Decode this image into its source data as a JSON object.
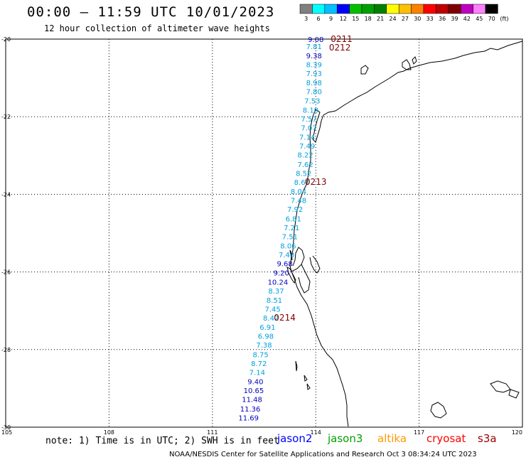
{
  "header": {
    "title": "00:00 – 11:59 UTC 10/01/2023",
    "subtitle": "12 hour collection of altimeter wave heights"
  },
  "legend": {
    "unit": "(ft)",
    "bins": [
      {
        "label": "3",
        "color": "#808080"
      },
      {
        "label": "6",
        "color": "#00ffff"
      },
      {
        "label": "9",
        "color": "#00c0ff"
      },
      {
        "label": "12",
        "color": "#0000ff"
      },
      {
        "label": "15",
        "color": "#00c000"
      },
      {
        "label": "18",
        "color": "#00a000"
      },
      {
        "label": "21",
        "color": "#008000"
      },
      {
        "label": "24",
        "color": "#ffff00"
      },
      {
        "label": "27",
        "color": "#ffc000"
      },
      {
        "label": "30",
        "color": "#ff8000"
      },
      {
        "label": "33",
        "color": "#ff0000"
      },
      {
        "label": "36",
        "color": "#c00000"
      },
      {
        "label": "39",
        "color": "#800000"
      },
      {
        "label": "42",
        "color": "#c000c0"
      },
      {
        "label": "45",
        "color": "#ff80ff"
      },
      {
        "label": "70",
        "color": "#000000"
      }
    ]
  },
  "axes": {
    "lat_ticks": [
      "-20",
      "-22",
      "-24",
      "-26",
      "-28",
      "-30"
    ],
    "lon_ticks": [
      "105",
      "108",
      "111",
      "114",
      "117",
      "120"
    ]
  },
  "chart_data": {
    "type": "scatter",
    "x_range": [
      105,
      120
    ],
    "y_range": [
      -30,
      -20
    ],
    "wave_heights": [
      {
        "text": "9.08",
        "color": "#0000c0",
        "lon": 114.0,
        "lat": -20.0
      },
      {
        "text": "7.81",
        "color": "#00a0e0",
        "lon": 113.95,
        "lat": -20.18
      },
      {
        "text": "9.38",
        "color": "#0000c0",
        "lon": 113.95,
        "lat": -20.42
      },
      {
        "text": "8.39",
        "color": "#00a0e0",
        "lon": 113.95,
        "lat": -20.65
      },
      {
        "text": "7.93",
        "color": "#00a0e0",
        "lon": 113.95,
        "lat": -20.88
      },
      {
        "text": "8.98",
        "color": "#00a0e0",
        "lon": 113.95,
        "lat": -21.12
      },
      {
        "text": "7.80",
        "color": "#00a0e0",
        "lon": 113.95,
        "lat": -21.35
      },
      {
        "text": "7.53",
        "color": "#00a0e0",
        "lon": 113.9,
        "lat": -21.58
      },
      {
        "text": "8.10",
        "color": "#00a0e0",
        "lon": 113.85,
        "lat": -21.82
      },
      {
        "text": "7.57",
        "color": "#00a0e0",
        "lon": 113.8,
        "lat": -22.05
      },
      {
        "text": "7.07",
        "color": "#00a0e0",
        "lon": 113.8,
        "lat": -22.28
      },
      {
        "text": "7.14",
        "color": "#00a0e0",
        "lon": 113.75,
        "lat": -22.52
      },
      {
        "text": "7.49",
        "color": "#00a0e0",
        "lon": 113.75,
        "lat": -22.75
      },
      {
        "text": "8.22",
        "color": "#00a0e0",
        "lon": 113.7,
        "lat": -22.98
      },
      {
        "text": "7.62",
        "color": "#00a0e0",
        "lon": 113.7,
        "lat": -23.22
      },
      {
        "text": "8.52",
        "color": "#00a0e0",
        "lon": 113.65,
        "lat": -23.45
      },
      {
        "text": "8.60",
        "color": "#00a0e0",
        "lon": 113.6,
        "lat": -23.68
      },
      {
        "text": "8.04",
        "color": "#00a0e0",
        "lon": 113.5,
        "lat": -23.92
      },
      {
        "text": "7.48",
        "color": "#00a0e0",
        "lon": 113.5,
        "lat": -24.15
      },
      {
        "text": "7.92",
        "color": "#00a0e0",
        "lon": 113.4,
        "lat": -24.38
      },
      {
        "text": "6.81",
        "color": "#00a0e0",
        "lon": 113.35,
        "lat": -24.62
      },
      {
        "text": "7.21",
        "color": "#00a0e0",
        "lon": 113.3,
        "lat": -24.85
      },
      {
        "text": "7.51",
        "color": "#00a0e0",
        "lon": 113.25,
        "lat": -25.08
      },
      {
        "text": "8.06",
        "color": "#00a0e0",
        "lon": 113.2,
        "lat": -25.32
      },
      {
        "text": "7.40",
        "color": "#00a0e0",
        "lon": 113.15,
        "lat": -25.55
      },
      {
        "text": "9.68",
        "color": "#0000c0",
        "lon": 113.1,
        "lat": -25.78
      },
      {
        "text": "9.20",
        "color": "#0000c0",
        "lon": 113.0,
        "lat": -26.02
      },
      {
        "text": "10.24",
        "color": "#0000c0",
        "lon": 112.9,
        "lat": -26.25
      },
      {
        "text": "8.37",
        "color": "#00a0e0",
        "lon": 112.85,
        "lat": -26.48
      },
      {
        "text": "8.51",
        "color": "#00a0e0",
        "lon": 112.8,
        "lat": -26.72
      },
      {
        "text": "7.45",
        "color": "#00a0e0",
        "lon": 112.75,
        "lat": -26.95
      },
      {
        "text": "8.42",
        "color": "#00a0e0",
        "lon": 112.7,
        "lat": -27.18
      },
      {
        "text": "6.91",
        "color": "#00a0e0",
        "lon": 112.6,
        "lat": -27.42
      },
      {
        "text": "6.98",
        "color": "#00a0e0",
        "lon": 112.55,
        "lat": -27.65
      },
      {
        "text": "7.38",
        "color": "#00a0e0",
        "lon": 112.5,
        "lat": -27.88
      },
      {
        "text": "8.75",
        "color": "#00a0e0",
        "lon": 112.4,
        "lat": -28.12
      },
      {
        "text": "8.72",
        "color": "#00a0e0",
        "lon": 112.35,
        "lat": -28.35
      },
      {
        "text": "7.14",
        "color": "#00a0e0",
        "lon": 112.3,
        "lat": -28.58
      },
      {
        "text": "9.40",
        "color": "#0000c0",
        "lon": 112.25,
        "lat": -28.82
      },
      {
        "text": "10.65",
        "color": "#0000c0",
        "lon": 112.2,
        "lat": -29.05
      },
      {
        "text": "11.48",
        "color": "#0000c0",
        "lon": 112.15,
        "lat": -29.28
      },
      {
        "text": "11.36",
        "color": "#0000c0",
        "lon": 112.1,
        "lat": -29.52
      },
      {
        "text": "11.69",
        "color": "#0000c0",
        "lon": 112.05,
        "lat": -29.75
      }
    ],
    "pass_labels": [
      {
        "text": "0211",
        "lon": 114.75,
        "lat": -20.0
      },
      {
        "text": "0212",
        "lon": 114.7,
        "lat": -20.22
      },
      {
        "text": "0213",
        "lon": 114.0,
        "lat": -23.68
      },
      {
        "text": "0214",
        "lon": 113.1,
        "lat": -27.18
      }
    ]
  },
  "footer": {
    "note": "note: 1) Time is in UTC; 2) SWH is in feet",
    "satellites": [
      {
        "name": "jason2",
        "color": "#0000ff"
      },
      {
        "name": "jason3",
        "color": "#00a000"
      },
      {
        "name": "altika",
        "color": "#ff9900"
      },
      {
        "name": "cryosat",
        "color": "#ff0000"
      },
      {
        "name": "s3a",
        "color": "#a00000"
      }
    ],
    "credit": "NOAA/NESDIS Center for Satellite Applications and Research   Oct  3 08:34:24 UTC 2023"
  }
}
